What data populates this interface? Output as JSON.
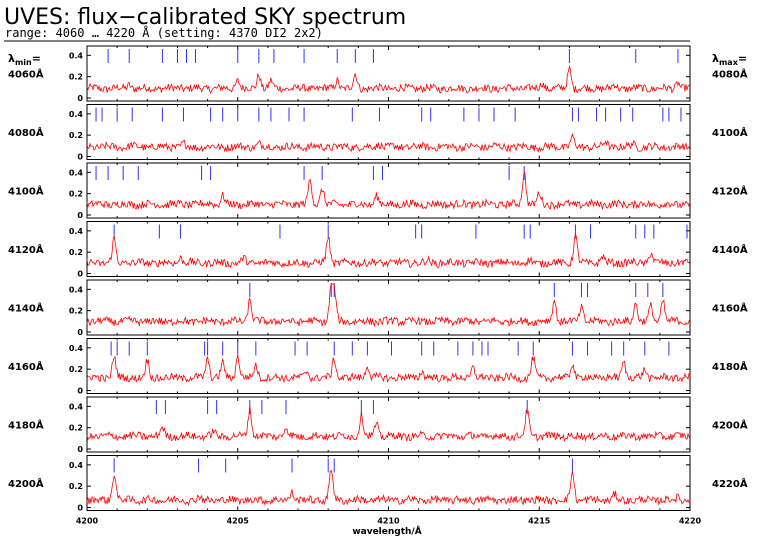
{
  "chart_data": {
    "type": "line",
    "title": "UVES: flux−calibrated SKY spectrum",
    "subtitle": "range: 4060 … 4220 Å (setting: 4370 DI2 2x2)",
    "xlabel": "wavelength/Å",
    "x_tick_labels": [
      "4200",
      "4205",
      "4210",
      "4215",
      "4220"
    ],
    "x_ticks": [
      4200,
      4205,
      4210,
      4215,
      4220
    ],
    "left_header_main": "λ",
    "left_header_sub": "min",
    "left_header_tail": "=",
    "right_header_main": "λ",
    "right_header_sub": "max",
    "right_header_tail": "=",
    "ylim": [
      0,
      0.45
    ],
    "y_tick_labels": [
      "0",
      "0.2",
      "0.4"
    ],
    "y_ticks": [
      0,
      0.2,
      0.4
    ],
    "line_color": "#ff0000",
    "marker_color": "#3030ff",
    "panels": [
      {
        "min_label": "4060Å",
        "max_label": "4080Å",
        "xrange": [
          4060,
          4080
        ],
        "markers": [
          4060.7,
          4061.4,
          4062.5,
          4063.0,
          4063.3,
          4063.6,
          4065.0,
          4065.7,
          4066.2,
          4067.2,
          4068.3,
          4068.9,
          4069.5,
          4076.0,
          4078.2,
          4079.6
        ],
        "peaks": [
          [
            4061.4,
            0.13
          ],
          [
            4063.1,
            0.1
          ],
          [
            4065.0,
            0.17
          ],
          [
            4065.7,
            0.22
          ],
          [
            4066.1,
            0.16
          ],
          [
            4068.3,
            0.17
          ],
          [
            4068.9,
            0.22
          ],
          [
            4075.1,
            0.14
          ],
          [
            4076.0,
            0.28
          ],
          [
            4077.5,
            0.12
          ],
          [
            4079.6,
            0.15
          ]
        ],
        "baseline": 0.09
      },
      {
        "min_label": "4080Å",
        "max_label": "4100Å",
        "xrange": [
          4080,
          4100
        ],
        "markers": [
          4080.3,
          4080.5,
          4081.0,
          4081.5,
          4082.5,
          4083.2,
          4084.1,
          4084.5,
          4085.0,
          4085.7,
          4086.1,
          4086.7,
          4087.2,
          4088.8,
          4089.7,
          4091.1,
          4091.4,
          4092.5,
          4093.0,
          4093.5,
          4094.2,
          4096.1,
          4096.3,
          4096.9,
          4097.2,
          4097.7,
          4098.1,
          4099.1,
          4099.3,
          4099.7
        ],
        "peaks": [
          [
            4081.5,
            0.1
          ],
          [
            4083.2,
            0.12
          ],
          [
            4085.7,
            0.12
          ],
          [
            4086.1,
            0.1
          ],
          [
            4089.7,
            0.12
          ],
          [
            4093.5,
            0.1
          ],
          [
            4096.1,
            0.18
          ],
          [
            4097.2,
            0.14
          ],
          [
            4098.1,
            0.12
          ]
        ],
        "baseline": 0.09
      },
      {
        "min_label": "4100Å",
        "max_label": "4120Å",
        "xrange": [
          4100,
          4120
        ],
        "markers": [
          4100.3,
          4100.7,
          4101.2,
          4101.7,
          4103.8,
          4104.1,
          4107.2,
          4107.8,
          4109.5,
          4109.8,
          4114.0,
          4114.5
        ],
        "peaks": [
          [
            4101.7,
            0.1
          ],
          [
            4104.1,
            0.12
          ],
          [
            4104.5,
            0.18
          ],
          [
            4107.4,
            0.33
          ],
          [
            4107.8,
            0.25
          ],
          [
            4109.6,
            0.18
          ],
          [
            4114.5,
            0.4
          ],
          [
            4115.0,
            0.2
          ]
        ],
        "baseline": 0.1
      },
      {
        "min_label": "4120Å",
        "max_label": "4140Å",
        "xrange": [
          4120,
          4140
        ],
        "markers": [
          4120.9,
          4122.4,
          4123.1,
          4126.4,
          4128.0,
          4130.9,
          4131.1,
          4132.9,
          4134.5,
          4134.7,
          4136.2,
          4136.7,
          4138.2,
          4138.5,
          4138.8,
          4139.9
        ],
        "peaks": [
          [
            4120.9,
            0.32
          ],
          [
            4123.1,
            0.15
          ],
          [
            4125.2,
            0.14
          ],
          [
            4128.0,
            0.34
          ],
          [
            4131.3,
            0.12
          ],
          [
            4134.7,
            0.12
          ],
          [
            4136.2,
            0.35
          ],
          [
            4137.1,
            0.16
          ],
          [
            4138.7,
            0.2
          ]
        ],
        "baseline": 0.1
      },
      {
        "min_label": "4140Å",
        "max_label": "4160Å",
        "xrange": [
          4140,
          4160
        ],
        "markers": [
          4145.4,
          4148.1,
          4148.2,
          4155.5,
          4156.4,
          4156.6,
          4158.2,
          4158.6,
          4159.1
        ],
        "peaks": [
          [
            4145.4,
            0.3
          ],
          [
            4148.1,
            0.42
          ],
          [
            4148.2,
            0.38
          ],
          [
            4155.5,
            0.3
          ],
          [
            4156.4,
            0.24
          ],
          [
            4158.2,
            0.28
          ],
          [
            4158.7,
            0.24
          ],
          [
            4159.1,
            0.3
          ]
        ],
        "baseline": 0.1
      },
      {
        "min_label": "4160Å",
        "max_label": "4180Å",
        "xrange": [
          4160,
          4180
        ],
        "markers": [
          4160.8,
          4161.0,
          4161.4,
          4162.0,
          4163.9,
          4164.0,
          4164.5,
          4165.0,
          4165.6,
          4166.9,
          4167.3,
          4168.2,
          4168.8,
          4169.3,
          4170.1,
          4171.1,
          4171.5,
          4172.3,
          4172.8,
          4173.1,
          4173.3,
          4174.3,
          4174.8,
          4176.1,
          4176.6,
          4177.4,
          4177.8,
          4178.5,
          4179.3
        ],
        "peaks": [
          [
            4160.9,
            0.32
          ],
          [
            4162.0,
            0.28
          ],
          [
            4164.0,
            0.3
          ],
          [
            4164.5,
            0.26
          ],
          [
            4165.0,
            0.32
          ],
          [
            4165.6,
            0.24
          ],
          [
            4167.3,
            0.18
          ],
          [
            4168.2,
            0.3
          ],
          [
            4169.3,
            0.24
          ],
          [
            4171.1,
            0.18
          ],
          [
            4172.8,
            0.22
          ],
          [
            4174.8,
            0.3
          ],
          [
            4176.1,
            0.26
          ],
          [
            4177.8,
            0.28
          ],
          [
            4178.5,
            0.2
          ]
        ],
        "baseline": 0.12
      },
      {
        "min_label": "4180Å",
        "max_label": "4200Å",
        "xrange": [
          4180,
          4200
        ],
        "markers": [
          4182.3,
          4182.6,
          4184.0,
          4184.3,
          4185.4,
          4185.8,
          4186.6,
          4189.1,
          4189.5,
          4194.6
        ],
        "peaks": [
          [
            4182.5,
            0.2
          ],
          [
            4184.2,
            0.16
          ],
          [
            4185.4,
            0.38
          ],
          [
            4186.6,
            0.2
          ],
          [
            4189.1,
            0.32
          ],
          [
            4189.6,
            0.24
          ],
          [
            4194.6,
            0.36
          ]
        ],
        "baseline": 0.12
      },
      {
        "min_label": "4200Å",
        "max_label": "4220Å",
        "xrange": [
          4200,
          4220
        ],
        "markers": [
          4200.9,
          4203.7,
          4204.6,
          4206.8,
          4208.0,
          4208.2,
          4216.1
        ],
        "peaks": [
          [
            4200.9,
            0.32
          ],
          [
            4203.7,
            0.1
          ],
          [
            4206.8,
            0.15
          ],
          [
            4208.1,
            0.36
          ],
          [
            4216.1,
            0.33
          ],
          [
            4217.5,
            0.12
          ],
          [
            4219.6,
            0.1
          ]
        ],
        "baseline": 0.07
      }
    ]
  }
}
